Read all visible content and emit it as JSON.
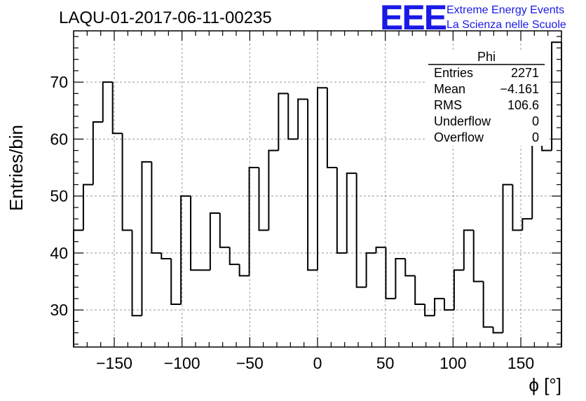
{
  "chart_data": {
    "type": "bar",
    "style": "step-histogram",
    "title": "LAQU-01-2017-06-11-00235",
    "xlabel": "ϕ [°]",
    "ylabel": "Entries/bin",
    "xlim": [
      -180,
      180
    ],
    "ylim": [
      23.5,
      79
    ],
    "bin_width": 7.2,
    "bin_start": -180,
    "values": [
      44,
      52,
      63,
      70,
      61,
      44,
      29,
      56,
      40,
      39,
      31,
      50,
      37,
      37,
      47,
      41,
      38,
      36,
      55,
      44,
      58,
      68,
      60,
      67,
      37,
      69,
      55,
      40,
      54,
      34,
      40,
      41,
      32,
      39,
      36,
      31,
      29,
      32,
      30,
      37,
      44,
      35,
      27,
      26,
      52,
      44,
      46,
      59,
      58,
      77
    ],
    "x_ticks": [
      "−150",
      "−100",
      "−50",
      "0",
      "50",
      "100",
      "150"
    ],
    "x_tick_values": [
      -150,
      -100,
      -50,
      0,
      50,
      100,
      150
    ],
    "y_ticks": [
      "30",
      "40",
      "50",
      "60",
      "70"
    ],
    "y_tick_values": [
      30,
      40,
      50,
      60,
      70
    ],
    "grid": true,
    "line_color": "#000000",
    "grid_color": "#999999",
    "stats_box": {
      "name": "Phi",
      "rows": [
        {
          "label": "Entries",
          "value": "2271"
        },
        {
          "label": "Mean",
          "value": "−4.161"
        },
        {
          "label": "RMS",
          "value": "106.6"
        },
        {
          "label": "Underflow",
          "value": "0"
        },
        {
          "label": "Overflow",
          "value": "0"
        }
      ]
    }
  },
  "logo": {
    "mark": "EEE",
    "line1": "Extreme Energy Events",
    "line2": "La Scienza nelle Scuole",
    "color": "#1a1ae6"
  }
}
